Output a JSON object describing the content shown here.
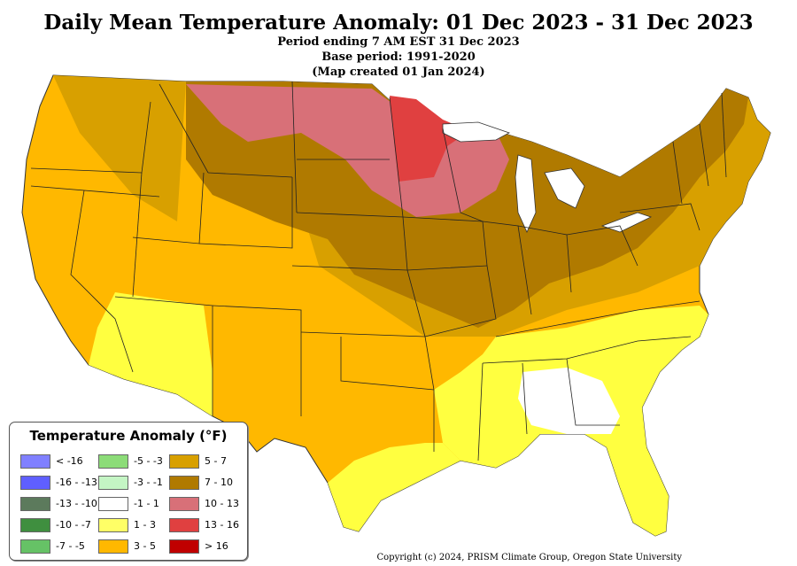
{
  "header": {
    "title": "Daily Mean Temperature Anomaly: 01 Dec 2023 - 31 Dec 2023",
    "period": "Period ending 7 AM EST 31 Dec 2023",
    "base": "Base period: 1991-2020",
    "created": "(Map created 01 Jan 2024)"
  },
  "legend": {
    "title": "Temperature Anomaly (°F)",
    "items": [
      {
        "label": "< -16",
        "color": "#8080ff"
      },
      {
        "label": "-16 - -13",
        "color": "#5f5fff"
      },
      {
        "label": "-13 - -10",
        "color": "#5c7a5c"
      },
      {
        "label": "-10 - -7",
        "color": "#3f8f3f"
      },
      {
        "label": "-7 - -5",
        "color": "#66c266"
      },
      {
        "label": "-5 - -3",
        "color": "#8cdc78"
      },
      {
        "label": "-3 - -1",
        "color": "#c4f5c4"
      },
      {
        "label": "-1 - 1",
        "color": "#ffffff"
      },
      {
        "label": "1 - 3",
        "color": "#ffff66"
      },
      {
        "label": "3 - 5",
        "color": "#ffb800"
      },
      {
        "label": "5 - 7",
        "color": "#d8a000"
      },
      {
        "label": "7 - 10",
        "color": "#b07a00"
      },
      {
        "label": "10 - 13",
        "color": "#d87078"
      },
      {
        "label": "13 - 16",
        "color": "#e04040"
      },
      {
        "label": "> 16",
        "color": "#c00000"
      }
    ]
  },
  "copyright": "Copyright (c) 2024, PRISM Climate Group, Oregon State University"
}
